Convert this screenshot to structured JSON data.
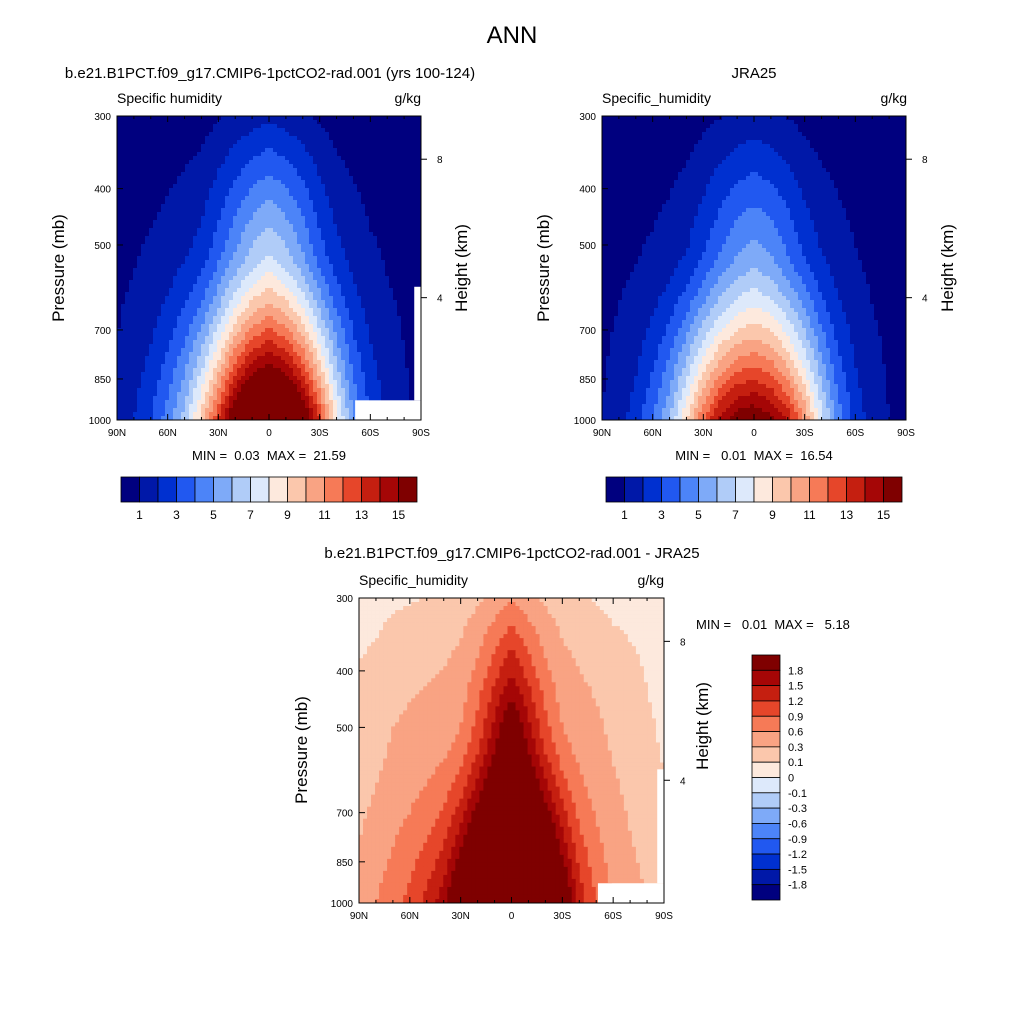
{
  "figure_title": "ANN",
  "chart_data": [
    {
      "type": "heatmap",
      "subtype": "filled-contour",
      "title": "b.e21.B1PCT.f09_g17.CMIP6-1pctCO2-rad.001 (yrs 100-124)",
      "variable_label": "Specific humidity",
      "units": "g/kg",
      "ylabel": "Pressure (mb)",
      "y2label": "Height (km)",
      "xticks": [
        "90N",
        "60N",
        "30N",
        "0",
        "30S",
        "60S",
        "90S"
      ],
      "yticks": [
        "300",
        "400",
        "500",
        "700",
        "850",
        "1000"
      ],
      "y2ticks": [
        "8",
        "4"
      ],
      "x_range": [
        90,
        -90
      ],
      "y_range": [
        1000,
        300
      ],
      "stats_text": "MIN =  0.03  MAX =  21.59",
      "min": 0.03,
      "max": 21.59,
      "levels": [
        1,
        2,
        3,
        4,
        5,
        6,
        7,
        8,
        9,
        10,
        11,
        12,
        13,
        14,
        15
      ],
      "colorbar_labels": [
        "1",
        "3",
        "5",
        "7",
        "9",
        "11",
        "13",
        "15"
      ],
      "colors": [
        "#00007f",
        "#0018a8",
        "#0030d0",
        "#2158f0",
        "#4c84f8",
        "#7eaaf8",
        "#b0ccf8",
        "#dde9fb",
        "#fde9dd",
        "#fbc7ac",
        "#f9a383",
        "#f67a57",
        "#e6462a",
        "#c51f10",
        "#a50606",
        "#7f0000"
      ],
      "colorbar_orientation": "horizontal",
      "profile": {
        "lat": [
          90,
          80,
          70,
          60,
          50,
          40,
          30,
          20,
          10,
          0,
          -10,
          -20,
          -30,
          -40,
          -50,
          -60,
          -70,
          -80,
          -90
        ],
        "surface_value": [
          1.2,
          2,
          3,
          4.5,
          6.5,
          9.5,
          13,
          17,
          19.5,
          20.5,
          19.5,
          17,
          13,
          8.5,
          5,
          3,
          1.8,
          1.2,
          0.8
        ],
        "pressure_500_value": [
          0.8,
          0.9,
          1.1,
          1.4,
          1.8,
          2.3,
          3.5,
          4.8,
          6,
          6.8,
          6,
          4.8,
          3.3,
          2.2,
          1.6,
          1.1,
          0.9,
          0.8,
          0.7
        ]
      },
      "masked_regions": [
        "surface below topography near 60S-90S, 850-1000 mb"
      ]
    },
    {
      "type": "heatmap",
      "subtype": "filled-contour",
      "title": "JRA25",
      "variable_label": "Specific_humidity",
      "units": "g/kg",
      "ylabel": "Pressure (mb)",
      "y2label": "Height (km)",
      "xticks": [
        "90N",
        "60N",
        "30N",
        "0",
        "30S",
        "60S",
        "90S"
      ],
      "yticks": [
        "300",
        "400",
        "500",
        "700",
        "850",
        "1000"
      ],
      "y2ticks": [
        "8",
        "4"
      ],
      "x_range": [
        90,
        -90
      ],
      "y_range": [
        1000,
        300
      ],
      "stats_text": "MIN =   0.01  MAX =  16.54",
      "min": 0.01,
      "max": 16.54,
      "levels": [
        1,
        2,
        3,
        4,
        5,
        6,
        7,
        8,
        9,
        10,
        11,
        12,
        13,
        14,
        15
      ],
      "colorbar_labels": [
        "1",
        "3",
        "5",
        "7",
        "9",
        "11",
        "13",
        "15"
      ],
      "colors": [
        "#00007f",
        "#0018a8",
        "#0030d0",
        "#2158f0",
        "#4c84f8",
        "#7eaaf8",
        "#b0ccf8",
        "#dde9fb",
        "#fde9dd",
        "#fbc7ac",
        "#f9a383",
        "#f67a57",
        "#e6462a",
        "#c51f10",
        "#a50606",
        "#7f0000"
      ],
      "colorbar_orientation": "horizontal",
      "profile": {
        "lat": [
          90,
          80,
          70,
          60,
          50,
          40,
          30,
          20,
          10,
          0,
          -10,
          -20,
          -30,
          -40,
          -50,
          -60,
          -70,
          -80,
          -90
        ],
        "surface_value": [
          1,
          1.6,
          2.5,
          4,
          6,
          9,
          12,
          14.5,
          15.8,
          16.2,
          15.5,
          13.8,
          11,
          7.5,
          4.5,
          2.6,
          1.6,
          1,
          0.8
        ],
        "pressure_500_value": [
          0.7,
          0.8,
          0.9,
          1.1,
          1.4,
          1.9,
          2.8,
          3.8,
          4.7,
          5.2,
          4.7,
          3.8,
          2.7,
          1.9,
          1.4,
          1,
          0.8,
          0.7,
          0.6
        ]
      }
    },
    {
      "type": "heatmap",
      "subtype": "filled-contour-difference",
      "title": "b.e21.B1PCT.f09_g17.CMIP6-1pctCO2-rad.001 - JRA25",
      "variable_label": "Specific_humidity",
      "units": "g/kg",
      "ylabel": "Pressure (mb)",
      "y2label": "Height (km)",
      "xticks": [
        "90N",
        "60N",
        "30N",
        "0",
        "30S",
        "60S",
        "90S"
      ],
      "yticks": [
        "300",
        "400",
        "500",
        "700",
        "850",
        "1000"
      ],
      "y2ticks": [
        "8",
        "4"
      ],
      "x_range": [
        90,
        -90
      ],
      "y_range": [
        1000,
        300
      ],
      "stats_text": "MIN =   0.01  MAX =   5.18",
      "min": 0.01,
      "max": 5.18,
      "levels": [
        -1.8,
        -1.5,
        -1.2,
        -0.9,
        -0.6,
        -0.3,
        -0.1,
        0,
        0.1,
        0.3,
        0.6,
        0.9,
        1.2,
        1.5,
        1.8
      ],
      "colorbar_labels": [
        "1.8",
        "1.5",
        "1.2",
        "0.9",
        "0.6",
        "0.3",
        "0.1",
        "0",
        "-0.1",
        "-0.3",
        "-0.6",
        "-0.9",
        "-1.2",
        "-1.5",
        "-1.8"
      ],
      "colors": [
        "#00007f",
        "#0018a8",
        "#0030d0",
        "#2158f0",
        "#4c84f8",
        "#7eaaf8",
        "#b0ccf8",
        "#dde9fb",
        "#fde9dd",
        "#fbc7ac",
        "#f9a383",
        "#f67a57",
        "#e6462a",
        "#c51f10",
        "#a50606",
        "#7f0000"
      ],
      "colorbar_orientation": "vertical",
      "profile": {
        "lat": [
          90,
          80,
          70,
          60,
          50,
          40,
          30,
          20,
          10,
          0,
          -10,
          -20,
          -30,
          -40,
          -50,
          -60,
          -70,
          -80,
          -90
        ],
        "surface_value": [
          0.4,
          0.6,
          0.8,
          1,
          1.3,
          1.7,
          2.5,
          3.5,
          4.5,
          5.0,
          4.5,
          3.5,
          2.4,
          1.4,
          0.9,
          0.6,
          0.4,
          0.3,
          0.2
        ],
        "pressure_500_value": [
          0.15,
          0.2,
          0.3,
          0.35,
          0.4,
          0.45,
          0.6,
          1,
          1.6,
          2.2,
          1.6,
          1,
          0.6,
          0.45,
          0.35,
          0.25,
          0.2,
          0.12,
          0.08
        ]
      },
      "masked_regions": [
        "surface below topography near 60S-90S, 850-1000 mb"
      ]
    }
  ]
}
